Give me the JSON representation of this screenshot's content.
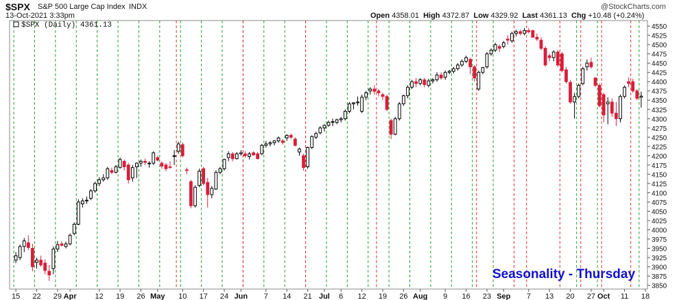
{
  "header": {
    "symbol": "$SPX",
    "name": "S&P 500 Large Cap Index",
    "exchange": "INDX",
    "date": "13-Oct-2021 3:33pm",
    "open_label": "Open",
    "open": "4358.01",
    "high_label": "High",
    "high": "4372.87",
    "low_label": "Low",
    "low": "4329.92",
    "last_label": "Last",
    "last": "4361.13",
    "chg_label": "Chg",
    "chg": "+10.48 (+0.24%)",
    "watermark": "@StockCharts.com"
  },
  "legend": {
    "text": "$SPX (Daily) 4361.13"
  },
  "annotation": "Seasonality - Thursday",
  "colors": {
    "up": "#ffffff",
    "down": "#d81e3a",
    "up_outline": "#000000",
    "green_line": "#2ca02c",
    "red_line": "#e03030",
    "annotation": "#1111cc"
  },
  "chart_data": {
    "type": "candlestick",
    "title": "$SPX (Daily) 4361.13",
    "ylim": [
      3840,
      4565
    ],
    "y_ticks": [
      3850,
      3875,
      3900,
      3925,
      3950,
      3975,
      4000,
      4025,
      4050,
      4075,
      4100,
      4125,
      4150,
      4175,
      4200,
      4225,
      4250,
      4275,
      4300,
      4325,
      4350,
      4375,
      4400,
      4425,
      4450,
      4475,
      4500,
      4525,
      4550
    ],
    "x_tick_labels": [
      "15",
      "22",
      "29",
      "Apr",
      "12",
      "19",
      "26",
      "May",
      "10",
      "17",
      "24",
      "Jun",
      "7",
      "14",
      "21",
      "Jul",
      "6",
      "12",
      "19",
      "26",
      "Aug",
      "9",
      "16",
      "23",
      "Sep",
      "7",
      "13",
      "20",
      "27",
      "Oct",
      "11",
      "18"
    ],
    "x_tick_days": [
      0,
      5,
      10,
      13,
      20,
      25,
      30,
      34,
      40,
      45,
      50,
      54,
      60,
      65,
      70,
      74,
      78,
      83,
      88,
      93,
      97,
      103,
      108,
      113,
      117,
      123,
      128,
      133,
      138,
      141,
      146,
      151
    ],
    "vertical_lines_green": [
      0,
      5,
      10,
      15,
      20,
      25,
      30,
      35,
      40,
      45,
      50,
      55,
      60,
      65,
      70,
      75,
      80,
      85,
      90,
      95,
      100,
      105,
      110,
      115,
      135,
      140,
      150
    ],
    "vertical_lines_red": [
      39,
      55,
      70,
      87,
      111,
      120,
      123,
      131,
      136,
      141,
      148
    ],
    "candles": [
      {
        "o": 3918,
        "h": 3940,
        "l": 3910,
        "c": 3930
      },
      {
        "o": 3925,
        "h": 3960,
        "l": 3918,
        "c": 3955
      },
      {
        "o": 3955,
        "h": 3978,
        "l": 3940,
        "c": 3970
      },
      {
        "o": 3965,
        "h": 3985,
        "l": 3945,
        "c": 3952
      },
      {
        "o": 3950,
        "h": 3962,
        "l": 3888,
        "c": 3900
      },
      {
        "o": 3912,
        "h": 3925,
        "l": 3895,
        "c": 3918
      },
      {
        "o": 3918,
        "h": 3930,
        "l": 3900,
        "c": 3905
      },
      {
        "o": 3910,
        "h": 3920,
        "l": 3880,
        "c": 3890
      },
      {
        "o": 3888,
        "h": 3905,
        "l": 3862,
        "c": 3878
      },
      {
        "o": 3895,
        "h": 3955,
        "l": 3880,
        "c": 3948
      },
      {
        "o": 3948,
        "h": 3970,
        "l": 3940,
        "c": 3960
      },
      {
        "o": 3962,
        "h": 3968,
        "l": 3955,
        "c": 3958
      },
      {
        "o": 3955,
        "h": 3968,
        "l": 3950,
        "c": 3962
      },
      {
        "o": 3962,
        "h": 3990,
        "l": 3958,
        "c": 3985
      },
      {
        "o": 3990,
        "h": 4020,
        "l": 3985,
        "c": 4015
      },
      {
        "o": 4015,
        "h": 4082,
        "l": 4012,
        "c": 4075
      },
      {
        "o": 4070,
        "h": 4085,
        "l": 4060,
        "c": 4078
      },
      {
        "o": 4078,
        "h": 4090,
        "l": 4070,
        "c": 4080
      },
      {
        "o": 4085,
        "h": 4110,
        "l": 4080,
        "c": 4105
      },
      {
        "o": 4105,
        "h": 4130,
        "l": 4100,
        "c": 4125
      },
      {
        "o": 4125,
        "h": 4142,
        "l": 4118,
        "c": 4135
      },
      {
        "o": 4135,
        "h": 4150,
        "l": 4130,
        "c": 4140
      },
      {
        "o": 4140,
        "h": 4170,
        "l": 4135,
        "c": 4165
      },
      {
        "o": 4160,
        "h": 4168,
        "l": 4150,
        "c": 4155
      },
      {
        "o": 4155,
        "h": 4175,
        "l": 4152,
        "c": 4170
      },
      {
        "o": 4168,
        "h": 4195,
        "l": 4165,
        "c": 4190
      },
      {
        "o": 4185,
        "h": 4190,
        "l": 4160,
        "c": 4170
      },
      {
        "o": 4175,
        "h": 4180,
        "l": 4125,
        "c": 4135
      },
      {
        "o": 4140,
        "h": 4175,
        "l": 4130,
        "c": 4168
      },
      {
        "o": 4170,
        "h": 4182,
        "l": 4140,
        "c": 4180
      },
      {
        "o": 4180,
        "h": 4190,
        "l": 4170,
        "c": 4185
      },
      {
        "o": 4185,
        "h": 4192,
        "l": 4175,
        "c": 4182
      },
      {
        "o": 4180,
        "h": 4185,
        "l": 4168,
        "c": 4180
      },
      {
        "o": 4180,
        "h": 4212,
        "l": 4175,
        "c": 4208
      },
      {
        "o": 4195,
        "h": 4200,
        "l": 4185,
        "c": 4188
      },
      {
        "o": 4180,
        "h": 4185,
        "l": 4165,
        "c": 4172
      },
      {
        "o": 4175,
        "h": 4180,
        "l": 4158,
        "c": 4165
      },
      {
        "o": 4170,
        "h": 4185,
        "l": 4165,
        "c": 4168
      },
      {
        "o": 4200,
        "h": 4215,
        "l": 4175,
        "c": 4200
      },
      {
        "o": 4212,
        "h": 4238,
        "l": 4205,
        "c": 4232
      },
      {
        "o": 4230,
        "h": 4236,
        "l": 4195,
        "c": 4200
      },
      {
        "o": 4162,
        "h": 4168,
        "l": 4150,
        "c": 4160
      },
      {
        "o": 4130,
        "h": 4135,
        "l": 4058,
        "c": 4065
      },
      {
        "o": 4065,
        "h": 4120,
        "l": 4060,
        "c": 4115
      },
      {
        "o": 4120,
        "h": 4165,
        "l": 4115,
        "c": 4158
      },
      {
        "o": 4165,
        "h": 4170,
        "l": 4120,
        "c": 4125
      },
      {
        "o": 4128,
        "h": 4140,
        "l": 4060,
        "c": 4095
      },
      {
        "o": 4095,
        "h": 4118,
        "l": 4085,
        "c": 4112
      },
      {
        "o": 4110,
        "h": 4160,
        "l": 4108,
        "c": 4155
      },
      {
        "o": 4155,
        "h": 4170,
        "l": 4150,
        "c": 4165
      },
      {
        "o": 4165,
        "h": 4192,
        "l": 4160,
        "c": 4190
      },
      {
        "o": 4195,
        "h": 4212,
        "l": 4185,
        "c": 4205
      },
      {
        "o": 4205,
        "h": 4210,
        "l": 4185,
        "c": 4192
      },
      {
        "o": 4192,
        "h": 4210,
        "l": 4190,
        "c": 4205
      },
      {
        "o": 4205,
        "h": 4215,
        "l": 4200,
        "c": 4208
      },
      {
        "o": 4205,
        "h": 4212,
        "l": 4195,
        "c": 4200
      },
      {
        "o": 4198,
        "h": 4210,
        "l": 4190,
        "c": 4205
      },
      {
        "o": 4208,
        "h": 4212,
        "l": 4200,
        "c": 4202
      },
      {
        "o": 4205,
        "h": 4210,
        "l": 4190,
        "c": 4192
      },
      {
        "o": 4205,
        "h": 4232,
        "l": 4202,
        "c": 4228
      },
      {
        "o": 4228,
        "h": 4240,
        "l": 4222,
        "c": 4232
      },
      {
        "o": 4232,
        "h": 4240,
        "l": 4225,
        "c": 4235
      },
      {
        "o": 4235,
        "h": 4242,
        "l": 4228,
        "c": 4240
      },
      {
        "o": 4240,
        "h": 4252,
        "l": 4235,
        "c": 4248
      },
      {
        "o": 4240,
        "h": 4245,
        "l": 4230,
        "c": 4236
      },
      {
        "o": 4248,
        "h": 4258,
        "l": 4240,
        "c": 4255
      },
      {
        "o": 4255,
        "h": 4260,
        "l": 4245,
        "c": 4250
      },
      {
        "o": 4245,
        "h": 4250,
        "l": 4225,
        "c": 4228
      },
      {
        "o": 4210,
        "h": 4222,
        "l": 4200,
        "c": 4218
      },
      {
        "o": 4200,
        "h": 4205,
        "l": 4160,
        "c": 4168
      },
      {
        "o": 4170,
        "h": 4225,
        "l": 4165,
        "c": 4222
      },
      {
        "o": 4222,
        "h": 4255,
        "l": 4218,
        "c": 4252
      },
      {
        "o": 4250,
        "h": 4265,
        "l": 4245,
        "c": 4260
      },
      {
        "o": 4262,
        "h": 4280,
        "l": 4258,
        "c": 4275
      },
      {
        "o": 4275,
        "h": 4285,
        "l": 4265,
        "c": 4282
      },
      {
        "o": 4282,
        "h": 4295,
        "l": 4278,
        "c": 4290
      },
      {
        "o": 4290,
        "h": 4300,
        "l": 4280,
        "c": 4292
      },
      {
        "o": 4290,
        "h": 4300,
        "l": 4285,
        "c": 4297
      },
      {
        "o": 4297,
        "h": 4305,
        "l": 4290,
        "c": 4300
      },
      {
        "o": 4300,
        "h": 4325,
        "l": 4295,
        "c": 4320
      },
      {
        "o": 4320,
        "h": 4345,
        "l": 4315,
        "c": 4340
      },
      {
        "o": 4340,
        "h": 4345,
        "l": 4325,
        "c": 4343
      },
      {
        "o": 4343,
        "h": 4360,
        "l": 4335,
        "c": 4345
      },
      {
        "o": 4320,
        "h": 4365,
        "l": 4315,
        "c": 4358
      },
      {
        "o": 4358,
        "h": 4375,
        "l": 4350,
        "c": 4370
      },
      {
        "o": 4375,
        "h": 4385,
        "l": 4365,
        "c": 4380
      },
      {
        "o": 4380,
        "h": 4390,
        "l": 4365,
        "c": 4374
      },
      {
        "o": 4375,
        "h": 4380,
        "l": 4360,
        "c": 4370
      },
      {
        "o": 4365,
        "h": 4370,
        "l": 4350,
        "c": 4360
      },
      {
        "o": 4360,
        "h": 4365,
        "l": 4320,
        "c": 4325
      },
      {
        "o": 4295,
        "h": 4300,
        "l": 4245,
        "c": 4258
      },
      {
        "o": 4258,
        "h": 4305,
        "l": 4255,
        "c": 4300
      },
      {
        "o": 4300,
        "h": 4345,
        "l": 4295,
        "c": 4340
      },
      {
        "o": 4340,
        "h": 4365,
        "l": 4335,
        "c": 4362
      },
      {
        "o": 4362,
        "h": 4390,
        "l": 4355,
        "c": 4385
      },
      {
        "o": 4385,
        "h": 4405,
        "l": 4380,
        "c": 4400
      },
      {
        "o": 4400,
        "h": 4410,
        "l": 4385,
        "c": 4395
      },
      {
        "o": 4395,
        "h": 4410,
        "l": 4390,
        "c": 4405
      },
      {
        "o": 4405,
        "h": 4410,
        "l": 4385,
        "c": 4392
      },
      {
        "o": 4390,
        "h": 4408,
        "l": 4385,
        "c": 4402
      },
      {
        "o": 4402,
        "h": 4410,
        "l": 4395,
        "c": 4405
      },
      {
        "o": 4405,
        "h": 4425,
        "l": 4400,
        "c": 4418
      },
      {
        "o": 4418,
        "h": 4425,
        "l": 4405,
        "c": 4410
      },
      {
        "o": 4412,
        "h": 4430,
        "l": 4405,
        "c": 4425
      },
      {
        "o": 4425,
        "h": 4432,
        "l": 4420,
        "c": 4428
      },
      {
        "o": 4428,
        "h": 4440,
        "l": 4422,
        "c": 4435
      },
      {
        "o": 4435,
        "h": 4450,
        "l": 4430,
        "c": 4445
      },
      {
        "o": 4445,
        "h": 4460,
        "l": 4440,
        "c": 4455
      },
      {
        "o": 4455,
        "h": 4470,
        "l": 4450,
        "c": 4465
      },
      {
        "o": 4460,
        "h": 4465,
        "l": 4420,
        "c": 4440
      },
      {
        "o": 4440,
        "h": 4445,
        "l": 4400,
        "c": 4410
      },
      {
        "o": 4380,
        "h": 4430,
        "l": 4375,
        "c": 4425
      },
      {
        "o": 4425,
        "h": 4440,
        "l": 4420,
        "c": 4438
      },
      {
        "o": 4440,
        "h": 4480,
        "l": 4435,
        "c": 4475
      },
      {
        "o": 4475,
        "h": 4490,
        "l": 4470,
        "c": 4485
      },
      {
        "o": 4485,
        "h": 4505,
        "l": 4480,
        "c": 4500
      },
      {
        "o": 4495,
        "h": 4500,
        "l": 4480,
        "c": 4490
      },
      {
        "o": 4495,
        "h": 4510,
        "l": 4490,
        "c": 4505
      },
      {
        "o": 4515,
        "h": 4525,
        "l": 4500,
        "c": 4512
      },
      {
        "o": 4510,
        "h": 4535,
        "l": 4505,
        "c": 4530
      },
      {
        "o": 4530,
        "h": 4540,
        "l": 4522,
        "c": 4535
      },
      {
        "o": 4535,
        "h": 4540,
        "l": 4525,
        "c": 4530
      },
      {
        "o": 4530,
        "h": 4545,
        "l": 4525,
        "c": 4538
      },
      {
        "o": 4538,
        "h": 4545,
        "l": 4530,
        "c": 4535
      },
      {
        "o": 4538,
        "h": 4540,
        "l": 4518,
        "c": 4520
      },
      {
        "o": 4520,
        "h": 4530,
        "l": 4510,
        "c": 4515
      },
      {
        "o": 4512,
        "h": 4520,
        "l": 4485,
        "c": 4490
      },
      {
        "o": 4490,
        "h": 4495,
        "l": 4440,
        "c": 4445
      },
      {
        "o": 4470,
        "h": 4475,
        "l": 4455,
        "c": 4465
      },
      {
        "o": 4465,
        "h": 4485,
        "l": 4455,
        "c": 4480
      },
      {
        "o": 4480,
        "h": 4485,
        "l": 4440,
        "c": 4445
      },
      {
        "o": 4475,
        "h": 4480,
        "l": 4425,
        "c": 4430
      },
      {
        "o": 4432,
        "h": 4440,
        "l": 4395,
        "c": 4400
      },
      {
        "o": 4398,
        "h": 4405,
        "l": 4340,
        "c": 4345
      },
      {
        "o": 4345,
        "h": 4370,
        "l": 4300,
        "c": 4360
      },
      {
        "o": 4360,
        "h": 4395,
        "l": 4355,
        "c": 4390
      },
      {
        "o": 4395,
        "h": 4440,
        "l": 4390,
        "c": 4435
      },
      {
        "o": 4440,
        "h": 4460,
        "l": 4430,
        "c": 4450
      },
      {
        "o": 4452,
        "h": 4465,
        "l": 4435,
        "c": 4440
      },
      {
        "o": 4410,
        "h": 4412,
        "l": 4385,
        "c": 4390
      },
      {
        "o": 4390,
        "h": 4395,
        "l": 4330,
        "c": 4335
      },
      {
        "o": 4365,
        "h": 4370,
        "l": 4290,
        "c": 4310
      },
      {
        "o": 4340,
        "h": 4358,
        "l": 4285,
        "c": 4345
      },
      {
        "o": 4345,
        "h": 4355,
        "l": 4305,
        "c": 4315
      },
      {
        "o": 4315,
        "h": 4345,
        "l": 4280,
        "c": 4300
      },
      {
        "o": 4300,
        "h": 4365,
        "l": 4290,
        "c": 4360
      },
      {
        "o": 4360,
        "h": 4390,
        "l": 4355,
        "c": 4385
      },
      {
        "o": 4400,
        "h": 4412,
        "l": 4385,
        "c": 4395
      },
      {
        "o": 4400,
        "h": 4408,
        "l": 4370,
        "c": 4375
      },
      {
        "o": 4375,
        "h": 4380,
        "l": 4350,
        "c": 4355
      },
      {
        "o": 4358,
        "h": 4373,
        "l": 4330,
        "c": 4361
      }
    ]
  }
}
